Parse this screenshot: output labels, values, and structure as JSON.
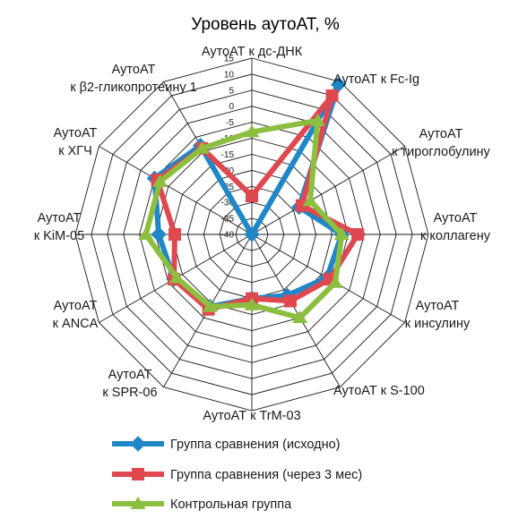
{
  "chart_data": {
    "type": "radar",
    "title": "Уровень аутоАТ, %",
    "axes": [
      [
        "АутоАТ к дс-ДНК"
      ],
      [
        "АутоАТ к Fc-Ig"
      ],
      [
        "АутоАТ",
        "к тироглобулину"
      ],
      [
        "АутоАТ",
        "к коллагену"
      ],
      [
        "АутоАТ",
        "к инсулину"
      ],
      [
        "АутоАТ к S-100"
      ],
      [
        "АутоАТ к TrM-03"
      ],
      [
        "АутоАТ",
        "к SPR-06"
      ],
      [
        "АутоАТ",
        "к ANCA"
      ],
      [
        "АутоАТ",
        "к KiM-05"
      ],
      [
        "АутоАТ",
        "к ХГЧ"
      ],
      [
        "АутоАТ",
        "к β2-гликопротеину 1"
      ]
    ],
    "ticks": [
      "15",
      "10",
      "5",
      "0",
      "-5",
      "-10",
      "-15",
      "-20",
      "-25",
      "-30",
      "-35",
      "-40"
    ],
    "rlim": [
      -40,
      15
    ],
    "grid": true,
    "legend_position": "bottom",
    "series": [
      {
        "name": "Группа сравнения (исходно)",
        "color": "#1f86c8",
        "marker": "diamond",
        "values": [
          -40,
          14,
          -23,
          -12,
          -13,
          -18,
          -20,
          -14,
          -12,
          -11,
          -5,
          -8
        ]
      },
      {
        "name": "Группа сравнения  (через 3 мес)",
        "color": "#e04850",
        "marker": "square",
        "values": [
          -28,
          10,
          -22,
          -7,
          -12,
          -16,
          -20,
          -13,
          -12,
          -16,
          -6,
          -9
        ]
      },
      {
        "name": "Контрольная группа",
        "color": "#8cbf3f",
        "marker": "triangle",
        "values": [
          -8,
          1,
          -19,
          -12,
          -10,
          -10,
          -18,
          -14,
          -13,
          -7,
          -7,
          -9
        ]
      }
    ]
  }
}
